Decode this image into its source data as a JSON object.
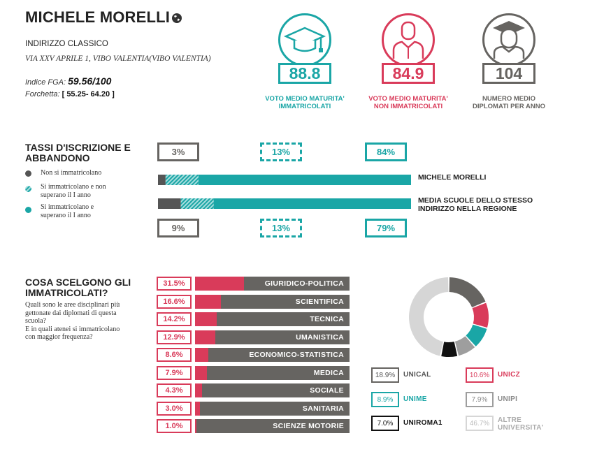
{
  "header": {
    "school_name": "MICHELE MORELLI",
    "indirizzo": "INDIRIZZO CLASSICO",
    "address": "VIA XXV APRILE 1, VIBO VALENTIA(VIBO VALENTIA)",
    "fga_label": "Indice FGA:",
    "fga_value": "59.56/100",
    "fork_label": "Forchetta:",
    "fork_value": "[ 55.25- 64.20 ]"
  },
  "kpis": [
    {
      "value": "88.8",
      "label_line1": "VOTO MEDIO MATURITA'",
      "label_line2": "IMMATRICOLATI",
      "color": "#1aa6a6",
      "icon": "graduation-cap-icon"
    },
    {
      "value": "84.9",
      "label_line1": "VOTO MEDIO MATURITA'",
      "label_line2": "NON IMMATRICOLATI",
      "color": "#d93b5a",
      "icon": "person-icon"
    },
    {
      "value": "104",
      "label_line1": "NUMERO MEDIO",
      "label_line2": "DIPLOMATI PER ANNO",
      "color": "#666461",
      "icon": "graduate-person-icon"
    }
  ],
  "enrollment": {
    "title_line1": "TASSI D'ISCRIZIONE E",
    "title_line2": "ABBANDONO",
    "legend": [
      {
        "text_line1": "Non si immatricolano",
        "text_line2": "",
        "color": "#555555"
      },
      {
        "text_line1": "Si immatricolano e non",
        "text_line2": "superano il I anno",
        "color": "#1aa6a6"
      },
      {
        "text_line1": "Si immatricolano e",
        "text_line2": "superano il I anno",
        "color": "#1aa6a6"
      }
    ],
    "school_label": "MICHELE MORELLI",
    "region_label_line1": "MEDIA SCUOLE DELLO STESSO",
    "region_label_line2": "INDIRIZZO NELLA REGIONE",
    "school_pcts": [
      "3%",
      "13%",
      "84%"
    ],
    "region_pcts": [
      "9%",
      "13%",
      "79%"
    ]
  },
  "areas": {
    "title_line1": "COSA SCELGONO GLI",
    "title_line2": "IMMATRICOLATI?",
    "question_lines": [
      "Quali sono le aree disciplinari più",
      "gettonate dai diplomati di questa",
      "scuola?",
      "E in quali atenei si immatricolano",
      "con maggior frequenza?"
    ]
  },
  "chart_data": [
    {
      "type": "bar",
      "title": "TASSI D'ISCRIZIONE E ABBANDONO",
      "categories": [
        "MICHELE MORELLI",
        "MEDIA SCUOLE DELLO STESSO INDIRIZZO NELLA REGIONE"
      ],
      "series": [
        {
          "name": "Non si immatricolano",
          "values": [
            3,
            9
          ]
        },
        {
          "name": "Si immatricolano e non superano il I anno",
          "values": [
            13,
            13
          ]
        },
        {
          "name": "Si immatricolano e superano il I anno",
          "values": [
            84,
            79
          ]
        }
      ],
      "stacked": true,
      "colors": [
        "#555555",
        "#1aa6a6",
        "#1aa6a6"
      ]
    },
    {
      "type": "bar",
      "title": "COSA SCELGONO GLI IMMATRICOLATI?",
      "categories": [
        "GIURIDICO-POLITICA",
        "SCIENTIFICA",
        "TECNICA",
        "UMANISTICA",
        "ECONOMICO-STATISTICA",
        "MEDICA",
        "SOCIALE",
        "SANITARIA",
        "SCIENZE MOTORIE"
      ],
      "values": [
        31.5,
        16.6,
        14.2,
        12.9,
        8.6,
        7.9,
        4.3,
        3.0,
        1.0
      ],
      "value_labels": [
        "31.5%",
        "16.6%",
        "14.2%",
        "12.9%",
        "8.6%",
        "7.9%",
        "4.3%",
        "3.0%",
        "1.0%"
      ],
      "max": 100,
      "colors": {
        "fill": "#d93b5a",
        "track": "#666461"
      }
    },
    {
      "type": "pie",
      "donut": true,
      "labels": [
        "UNICAL",
        "UNICZ",
        "UNIME",
        "UNIPI",
        "UNIROMA1",
        "ALTRE UNIVERSITA'"
      ],
      "values": [
        18.9,
        10.6,
        8.9,
        7.9,
        7.0,
        46.7
      ],
      "value_labels": [
        "18.9%",
        "10.6%",
        "8.9%",
        "7.9%",
        "7.0%",
        "46.7%"
      ],
      "colors": [
        "#666461",
        "#d93b5a",
        "#1aa6a6",
        "#9e9e9e",
        "#111111",
        "#d6d6d6"
      ]
    }
  ]
}
